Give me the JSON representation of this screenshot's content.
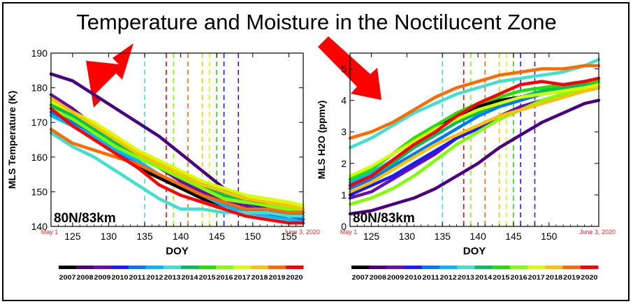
{
  "title": "Temperature and Moisture in the Noctilucent Zone",
  "years": [
    "2007",
    "2008",
    "2009",
    "2010",
    "2011",
    "2012",
    "2013",
    "2014",
    "2015",
    "2016",
    "2017",
    "2018",
    "2019",
    "2020"
  ],
  "year_colors": [
    "#000000",
    "#4b0082",
    "#6a0dad",
    "#1a1aff",
    "#0077ff",
    "#00b8ff",
    "#40e0d0",
    "#00c060",
    "#20e000",
    "#80ff00",
    "#d4ff00",
    "#ffc000",
    "#ff6a00",
    "#ff0000"
  ],
  "chart_data": [
    {
      "type": "line",
      "xlabel": "DOY",
      "ylabel": "MLS Temperature (K)",
      "xlim": [
        122,
        157
      ],
      "ylim": [
        140,
        190
      ],
      "xticks": [
        125,
        130,
        135,
        140,
        145,
        150,
        155
      ],
      "yticks": [
        140,
        150,
        160,
        170,
        180,
        190
      ],
      "region_label": "80N/83km",
      "start_label": "May 1",
      "end_label": "June 3, 2020",
      "vlines": [
        {
          "x": 135,
          "year": "2013"
        },
        {
          "x": 138,
          "year": "2020"
        },
        {
          "x": 139,
          "year": "2016"
        },
        {
          "x": 141,
          "year": "2019"
        },
        {
          "x": 143,
          "year": "2018"
        },
        {
          "x": 144,
          "year": "2017"
        },
        {
          "x": 145,
          "year": "2015"
        },
        {
          "x": 146,
          "year": "2010"
        },
        {
          "x": 148,
          "year": "2009"
        }
      ],
      "x": [
        122,
        125,
        128,
        131,
        134,
        137,
        140,
        143,
        146,
        149,
        152,
        155,
        157
      ],
      "series": [
        {
          "name": "2007",
          "values": [
            175,
            171,
            166,
            162,
            157,
            154,
            151,
            148,
            146,
            145,
            143,
            143,
            142
          ]
        },
        {
          "name": "2008",
          "values": [
            184,
            182,
            178,
            174,
            170,
            166,
            161,
            156,
            151,
            148,
            146,
            145,
            144
          ]
        },
        {
          "name": "2009",
          "values": [
            178,
            174,
            169,
            165,
            161,
            157,
            153,
            150,
            147,
            146,
            144,
            144,
            143
          ]
        },
        {
          "name": "2010",
          "values": [
            174,
            171,
            168,
            165,
            161,
            158,
            155,
            152,
            149,
            147,
            145,
            144,
            143
          ]
        },
        {
          "name": "2011",
          "values": [
            173,
            170,
            166,
            162,
            158,
            155,
            152,
            149,
            147,
            145,
            144,
            143,
            142
          ]
        },
        {
          "name": "2012",
          "values": [
            172,
            169,
            166,
            162,
            159,
            155,
            152,
            149,
            146,
            144,
            143,
            142,
            141
          ]
        },
        {
          "name": "2013",
          "values": [
            167,
            163,
            160,
            156,
            152,
            148,
            145,
            145,
            144,
            144,
            144,
            143,
            143
          ]
        },
        {
          "name": "2014",
          "values": [
            175,
            172,
            168,
            164,
            160,
            157,
            154,
            151,
            149,
            147,
            146,
            145,
            144
          ]
        },
        {
          "name": "2015",
          "values": [
            176,
            173,
            169,
            165,
            161,
            158,
            155,
            153,
            150,
            148,
            147,
            146,
            145
          ]
        },
        {
          "name": "2016",
          "values": [
            174,
            171,
            167,
            163,
            160,
            157,
            154,
            151,
            148,
            147,
            146,
            145,
            145
          ]
        },
        {
          "name": "2017",
          "values": [
            176,
            173,
            170,
            166,
            162,
            159,
            156,
            153,
            151,
            149,
            148,
            147,
            146
          ]
        },
        {
          "name": "2018",
          "values": [
            177,
            173,
            169,
            165,
            161,
            158,
            155,
            152,
            150,
            148,
            147,
            146,
            145
          ]
        },
        {
          "name": "2019",
          "values": [
            168,
            164,
            162,
            160,
            158,
            155,
            152,
            149,
            147,
            145,
            145,
            144,
            144
          ]
        },
        {
          "name": "2020",
          "values": [
            174,
            169,
            165,
            161,
            157,
            152,
            149,
            147,
            145,
            143,
            142,
            141,
            141
          ]
        }
      ]
    },
    {
      "type": "line",
      "xlabel": "DOY",
      "ylabel": "MLS H2O (ppmv)",
      "xlim": [
        122,
        157
      ],
      "ylim": [
        0,
        5.5
      ],
      "xticks": [
        125,
        130,
        135,
        140,
        145,
        150
      ],
      "yticks": [
        0,
        1,
        2,
        3,
        4,
        5
      ],
      "region_label": "80N/83km",
      "start_label": "May 1",
      "end_label": "June 3, 2020",
      "vlines": [
        {
          "x": 135,
          "year": "2013"
        },
        {
          "x": 138,
          "year": "2020"
        },
        {
          "x": 139,
          "year": "2016"
        },
        {
          "x": 141,
          "year": "2019"
        },
        {
          "x": 143,
          "year": "2018"
        },
        {
          "x": 144,
          "year": "2017"
        },
        {
          "x": 145,
          "year": "2015"
        },
        {
          "x": 146,
          "year": "2010"
        },
        {
          "x": 148,
          "year": "2009"
        }
      ],
      "x": [
        122,
        125,
        128,
        131,
        134,
        137,
        140,
        143,
        146,
        149,
        152,
        155,
        157
      ],
      "series": [
        {
          "name": "2007",
          "values": [
            1.2,
            1.6,
            2.1,
            2.6,
            3.1,
            3.5,
            3.8,
            4.0,
            4.1,
            4.2,
            4.3,
            4.3,
            4.4
          ]
        },
        {
          "name": "2008",
          "values": [
            0.4,
            0.5,
            0.7,
            0.9,
            1.2,
            1.6,
            2.0,
            2.5,
            2.9,
            3.3,
            3.6,
            3.9,
            4.0
          ]
        },
        {
          "name": "2009",
          "values": [
            0.9,
            1.1,
            1.5,
            1.9,
            2.3,
            2.8,
            3.2,
            3.5,
            3.8,
            4.0,
            4.2,
            4.4,
            4.5
          ]
        },
        {
          "name": "2010",
          "values": [
            1.0,
            1.3,
            1.6,
            2.0,
            2.4,
            2.8,
            3.1,
            3.4,
            3.7,
            3.9,
            4.1,
            4.3,
            4.4
          ]
        },
        {
          "name": "2011",
          "values": [
            1.2,
            1.5,
            1.9,
            2.3,
            2.7,
            3.1,
            3.5,
            3.8,
            4.0,
            4.2,
            4.3,
            4.4,
            4.5
          ]
        },
        {
          "name": "2012",
          "values": [
            1.4,
            1.7,
            2.1,
            2.5,
            2.9,
            3.3,
            3.6,
            3.9,
            4.1,
            4.3,
            4.5,
            4.6,
            4.7
          ]
        },
        {
          "name": "2013",
          "values": [
            2.5,
            2.8,
            3.2,
            3.6,
            3.9,
            4.2,
            4.4,
            4.6,
            4.7,
            4.8,
            4.9,
            5.1,
            5.3
          ]
        },
        {
          "name": "2014",
          "values": [
            1.3,
            1.6,
            2.0,
            2.5,
            2.9,
            3.3,
            3.6,
            3.9,
            4.1,
            4.3,
            4.4,
            4.5,
            4.6
          ]
        },
        {
          "name": "2015",
          "values": [
            1.5,
            1.8,
            2.3,
            2.8,
            3.2,
            3.6,
            3.9,
            4.1,
            4.3,
            4.4,
            4.5,
            4.6,
            4.6
          ]
        },
        {
          "name": "2016",
          "values": [
            0.7,
            0.9,
            1.2,
            1.6,
            2.1,
            2.6,
            3.0,
            3.4,
            3.7,
            4.0,
            4.2,
            4.4,
            4.5
          ]
        },
        {
          "name": "2017",
          "values": [
            1.6,
            1.9,
            2.3,
            2.7,
            3.1,
            3.4,
            3.7,
            3.9,
            4.1,
            4.2,
            4.3,
            4.4,
            4.5
          ]
        },
        {
          "name": "2018",
          "values": [
            1.1,
            1.4,
            1.8,
            2.2,
            2.6,
            2.9,
            3.2,
            3.5,
            3.7,
            3.9,
            4.1,
            4.3,
            4.4
          ]
        },
        {
          "name": "2019",
          "values": [
            2.8,
            3.0,
            3.3,
            3.7,
            4.1,
            4.4,
            4.6,
            4.8,
            4.9,
            5.0,
            5.0,
            5.1,
            5.1
          ]
        },
        {
          "name": "2020",
          "values": [
            1.3,
            1.6,
            2.1,
            2.6,
            3.0,
            3.5,
            3.9,
            4.2,
            4.5,
            4.6,
            4.5,
            4.6,
            4.7
          ]
        }
      ]
    }
  ]
}
